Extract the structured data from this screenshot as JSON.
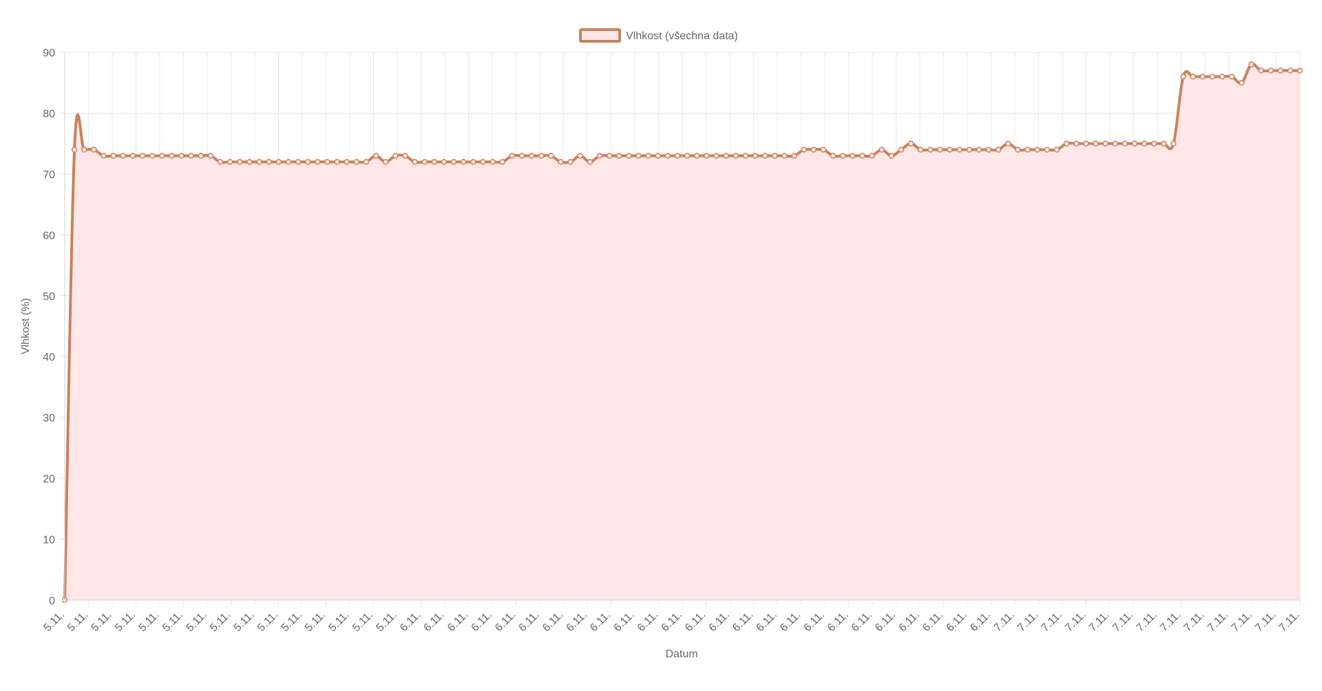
{
  "chart_data": {
    "type": "area",
    "x_label": "Datum",
    "y_label": "Vlhkost (%)",
    "ylim": [
      0,
      90
    ],
    "y_ticks": [
      0,
      10,
      20,
      30,
      40,
      50,
      60,
      70,
      80,
      90
    ],
    "grid": true,
    "legend_position": "top-center",
    "x_tick_labels": [
      "5.11.",
      "5.11.",
      "5.11.",
      "5.11.",
      "5.11.",
      "5.11.",
      "5.11.",
      "5.11.",
      "5.11.",
      "5.11.",
      "5.11.",
      "5.11.",
      "5.11.",
      "5.11.",
      "5.11.",
      "6.11.",
      "6.11.",
      "6.11.",
      "6.11.",
      "6.11.",
      "6.11.",
      "6.11.",
      "6.11.",
      "6.11.",
      "6.11.",
      "6.11.",
      "6.11.",
      "6.11.",
      "6.11.",
      "6.11.",
      "6.11.",
      "6.11.",
      "6.11.",
      "6.11.",
      "6.11.",
      "6.11.",
      "6.11.",
      "6.11.",
      "6.11.",
      "6.11.",
      "7.11.",
      "7.11.",
      "7.11.",
      "7.11.",
      "7.11.",
      "7.11.",
      "7.11.",
      "7.11.",
      "7.11.",
      "7.11.",
      "7.11.",
      "7.11.",
      "7.11."
    ],
    "series": [
      {
        "name": "Vlhkost (všechna data)",
        "line_color": "#c8825a",
        "fill_color": "#ffe7e8",
        "values": [
          0,
          74,
          74,
          74,
          73,
          73,
          73,
          73,
          73,
          73,
          73,
          73,
          73,
          73,
          73,
          73,
          72,
          72,
          72,
          72,
          72,
          72,
          72,
          72,
          72,
          72,
          72,
          72,
          72,
          72,
          72,
          72,
          73,
          72,
          73,
          73,
          72,
          72,
          72,
          72,
          72,
          72,
          72,
          72,
          72,
          72,
          73,
          73,
          73,
          73,
          73,
          72,
          72,
          73,
          72,
          73,
          73,
          73,
          73,
          73,
          73,
          73,
          73,
          73,
          73,
          73,
          73,
          73,
          73,
          73,
          73,
          73,
          73,
          73,
          73,
          73,
          74,
          74,
          74,
          73,
          73,
          73,
          73,
          73,
          74,
          73,
          74,
          75,
          74,
          74,
          74,
          74,
          74,
          74,
          74,
          74,
          74,
          75,
          74,
          74,
          74,
          74,
          74,
          75,
          75,
          75,
          75,
          75,
          75,
          75,
          75,
          75,
          75,
          75,
          75,
          86,
          86,
          86,
          86,
          86,
          86,
          85,
          88,
          87,
          87,
          87,
          87,
          87
        ]
      }
    ]
  }
}
